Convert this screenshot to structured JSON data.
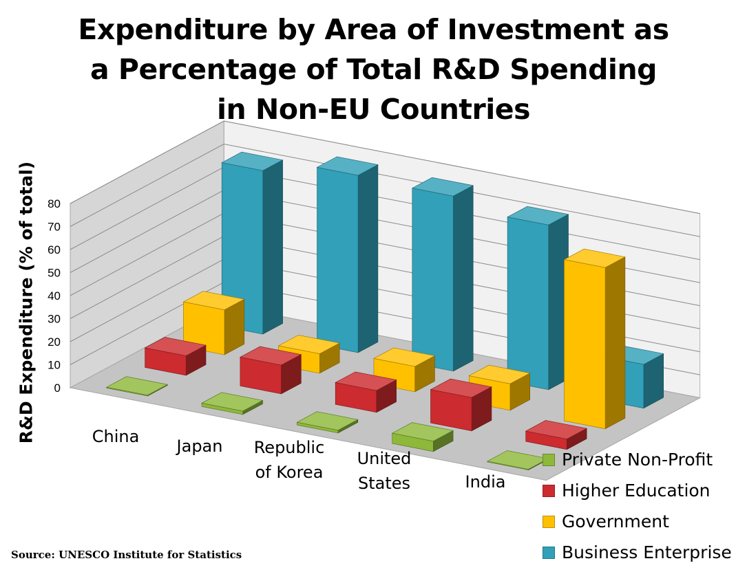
{
  "title_lines": [
    "Expenditure by Area of Investment as",
    "a Percentage of Total R&D Spending",
    "in Non-EU Countries"
  ],
  "source": "Source: UNESCO Institute for Statistics",
  "chart_data": {
    "type": "bar",
    "style": "3d-clustered-columns",
    "title": "Expenditure by Area of Investment as a Percentage of Total R&D Spending in Non-EU Countries",
    "xlabel": "",
    "ylabel": "R&D Expenditure (% of total)",
    "ylim": [
      0,
      80
    ],
    "yticks": [
      0,
      10,
      20,
      30,
      40,
      50,
      60,
      70,
      80
    ],
    "grid": true,
    "legend_position": "bottom-right",
    "categories": [
      [
        "China"
      ],
      [
        "Japan"
      ],
      [
        "Republic",
        "of Korea"
      ],
      [
        "United",
        "States"
      ],
      [
        "India"
      ]
    ],
    "series": [
      {
        "name": "Private Non-Profit",
        "color": "#8DB83A",
        "values": [
          0.1,
          1.5,
          1.2,
          4.5,
          0.1
        ]
      },
      {
        "name": "Higher Education",
        "color": "#CC2B2F",
        "values": [
          8.5,
          12.5,
          9.5,
          14.5,
          4.5
        ]
      },
      {
        "name": "Government",
        "color": "#FFC000",
        "values": [
          19.5,
          8.5,
          11,
          11.5,
          70
        ]
      },
      {
        "name": "Business Enterprise",
        "color": "#31A0B8",
        "values": [
          71,
          77,
          76,
          71.5,
          19
        ]
      }
    ]
  }
}
